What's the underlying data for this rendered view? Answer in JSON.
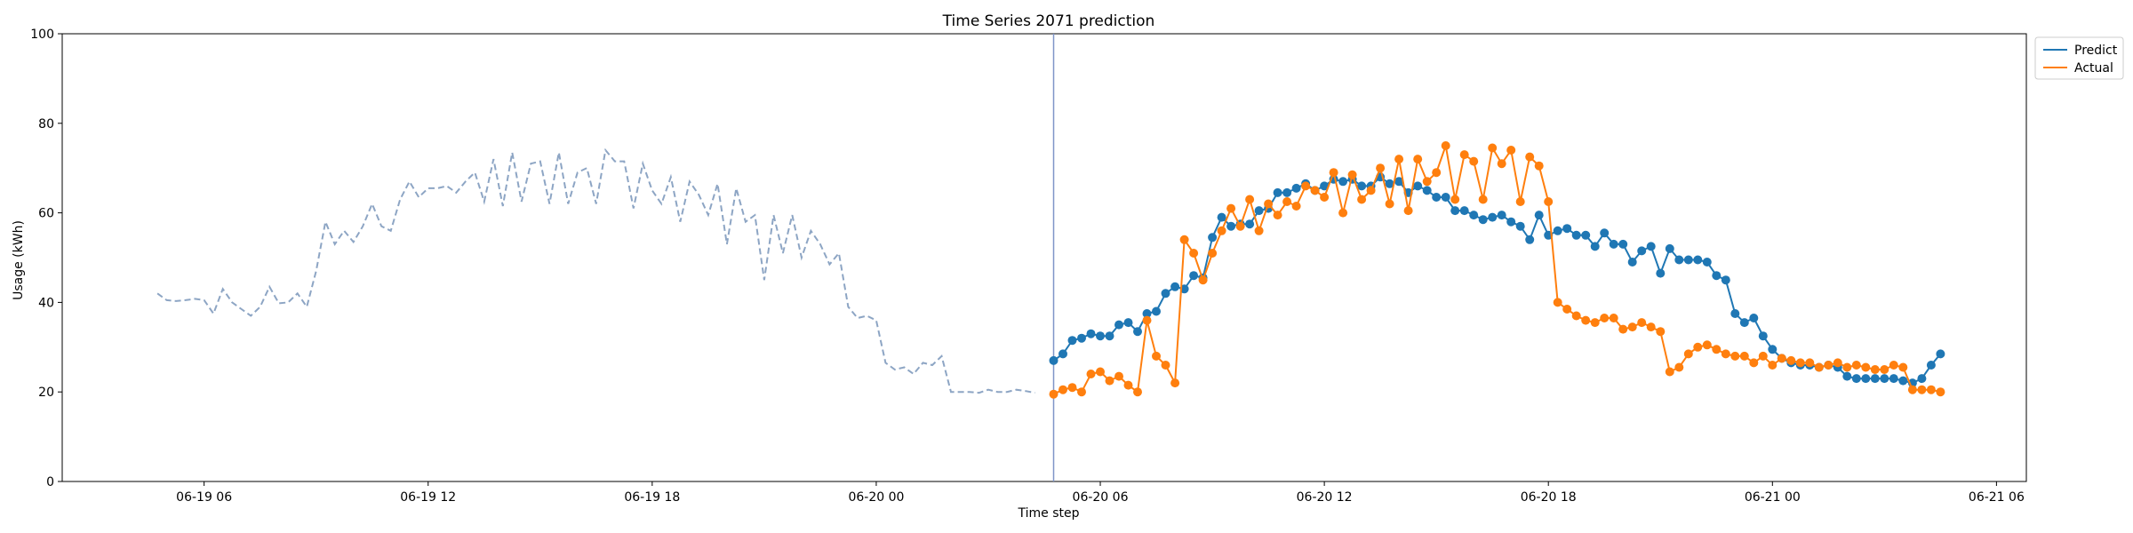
{
  "chart_data": {
    "type": "line",
    "title": "Time Series 2071 prediction",
    "xlabel": "Time step",
    "ylabel": "Usage (kWh)",
    "xlim": [
      "2023-06-19T02:12",
      "2023-06-21T06:48"
    ],
    "ylim": [
      0,
      100
    ],
    "x_ticks": [
      {
        "value": "2023-06-19T06:00",
        "label": "06-19 06"
      },
      {
        "value": "2023-06-19T12:00",
        "label": "06-19 12"
      },
      {
        "value": "2023-06-19T18:00",
        "label": "06-19 18"
      },
      {
        "value": "2023-06-20T00:00",
        "label": "06-20 00"
      },
      {
        "value": "2023-06-20T06:00",
        "label": "06-20 06"
      },
      {
        "value": "2023-06-20T12:00",
        "label": "06-20 12"
      },
      {
        "value": "2023-06-20T18:00",
        "label": "06-20 18"
      },
      {
        "value": "2023-06-21T00:00",
        "label": "06-21 00"
      },
      {
        "value": "2023-06-21T06:00",
        "label": "06-21 06"
      }
    ],
    "y_ticks": [
      0,
      20,
      40,
      60,
      80,
      100
    ],
    "grid": false,
    "legend_position": "outside-top-right",
    "forecast_start": "2023-06-20T04:45",
    "colors": {
      "history": "#8da5c4",
      "predict": "#1f77b4",
      "actual": "#ff7f0e",
      "divider": "#7f95c8"
    },
    "history": {
      "start": "2023-06-19T04:45",
      "step_minutes": 15,
      "values": [
        42,
        40.5,
        40.3,
        40.5,
        40.8,
        40.5,
        37.5,
        43,
        40,
        38.5,
        37,
        39,
        43.5,
        39.8,
        40,
        42,
        39,
        47,
        58,
        53,
        56,
        53.5,
        57,
        62,
        57,
        56,
        63,
        67,
        63.5,
        65.5,
        65.5,
        66,
        64.5,
        67,
        69,
        62.5,
        72,
        61.5,
        73.5,
        62.5,
        71,
        71.5,
        62,
        73.5,
        62,
        69,
        70,
        62,
        74,
        71.5,
        71.5,
        61,
        71,
        65,
        62,
        68,
        58,
        67,
        64,
        59.5,
        66.5,
        53,
        65.5,
        58,
        59.5,
        45,
        59.5,
        51,
        59.5,
        50,
        56,
        53,
        48.5,
        51,
        39,
        36.5,
        37,
        36,
        26.5,
        25,
        25.5,
        24,
        26.5,
        26,
        28,
        20,
        20,
        20,
        19.8,
        20.5,
        20,
        20,
        20.5,
        20.2,
        19.8
      ]
    },
    "series": [
      {
        "name": "Predict",
        "start": "2023-06-20T04:45",
        "step_minutes": 15,
        "values": [
          27,
          28.5,
          31.5,
          32,
          33,
          32.5,
          32.5,
          35,
          35.5,
          33.5,
          37.5,
          38,
          42,
          43.5,
          43,
          46,
          45.5,
          54.5,
          59,
          57,
          57.5,
          57.5,
          60.5,
          61,
          64.5,
          64.5,
          65.5,
          66.5,
          65,
          66,
          67.5,
          67,
          67.5,
          66,
          66,
          68,
          66.5,
          67,
          64.5,
          66,
          65,
          63.5,
          63.5,
          60.5,
          60.5,
          59.5,
          58.5,
          59,
          59.5,
          58,
          57,
          54,
          59.5,
          55,
          56,
          56.5,
          55,
          55,
          52.5,
          55.5,
          53,
          53,
          49,
          51.5,
          52.5,
          46.5,
          52,
          49.5,
          49.5,
          49.5,
          49,
          46,
          45,
          37.5,
          35.5,
          36.5,
          32.5,
          29.5,
          27.5,
          26.5,
          26,
          26,
          25.5,
          26,
          25.5,
          23.5,
          23,
          23,
          23,
          23,
          23,
          22.5,
          22,
          23,
          26,
          28.5
        ]
      },
      {
        "name": "Actual",
        "start": "2023-06-20T04:45",
        "step_minutes": 15,
        "values": [
          19.5,
          20.5,
          21,
          20,
          24,
          24.5,
          22.5,
          23.5,
          21.5,
          20,
          36,
          28,
          26,
          22,
          54,
          51,
          45,
          51,
          56,
          61,
          57,
          63,
          56,
          62,
          59.5,
          62.5,
          61.5,
          66,
          65,
          63.5,
          69,
          60,
          68.5,
          63,
          65,
          70,
          62,
          72,
          60.5,
          72,
          67,
          69,
          75,
          63,
          73,
          71.5,
          63,
          74.5,
          71,
          74,
          62.5,
          72.5,
          70.5,
          62.5,
          40,
          38.5,
          37,
          36,
          35.5,
          36.5,
          36.5,
          34,
          34.5,
          35.5,
          34.5,
          33.5,
          24.5,
          25.5,
          28.5,
          30,
          30.5,
          29.5,
          28.5,
          28,
          28,
          26.5,
          28,
          26,
          27.5,
          27,
          26.5,
          26.5,
          25.5,
          26,
          26.5,
          25.5,
          26,
          25.5,
          25,
          25,
          26,
          25.5,
          20.5,
          20.5,
          20.5,
          20
        ]
      }
    ]
  }
}
